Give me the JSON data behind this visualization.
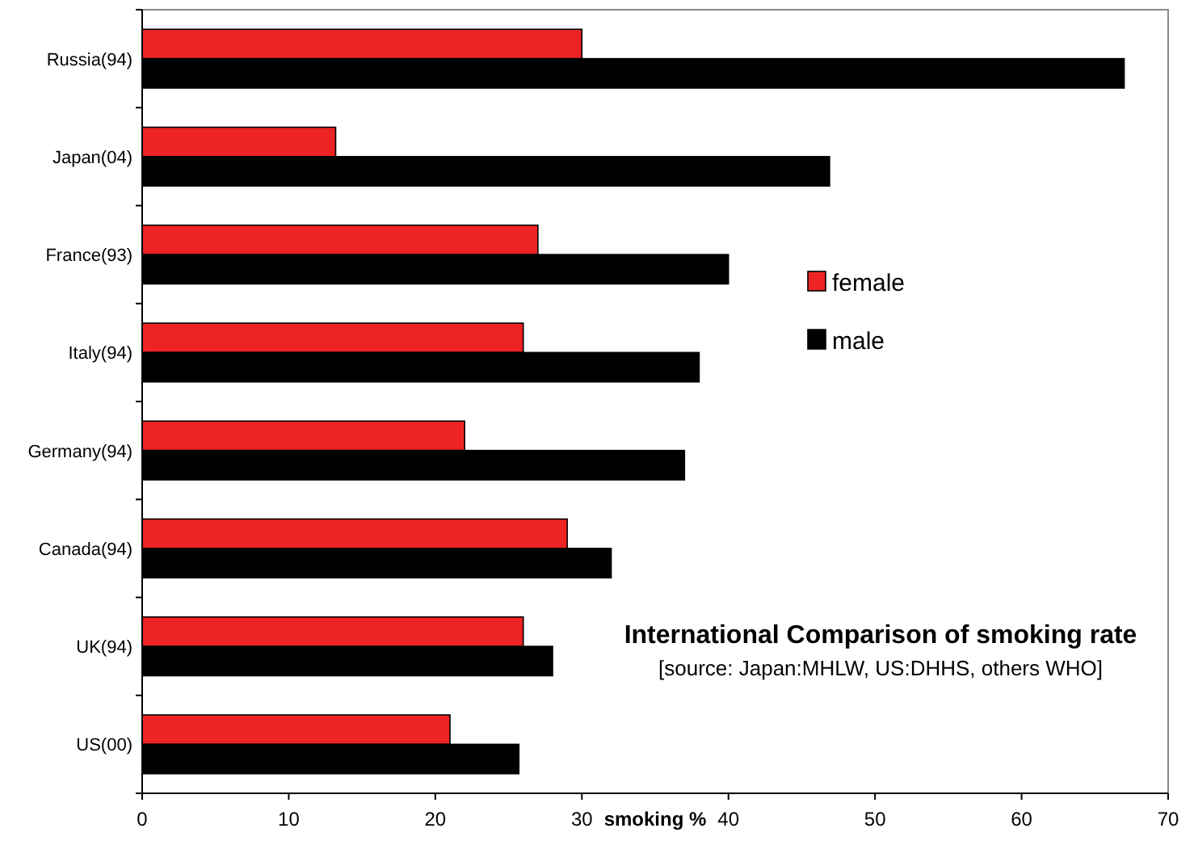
{
  "chart_data": {
    "type": "bar",
    "orientation": "horizontal",
    "title": "International Comparison of smoking rate",
    "subtitle": "[source: Japan:MHLW, US:DHHS, others WHO]",
    "xlabel": "smoking %",
    "categories": [
      "Russia(94)",
      "Japan(04)",
      "France(93)",
      "Italy(94)",
      "Germany(94)",
      "Canada(94)",
      "UK(94)",
      "US(00)"
    ],
    "series": [
      {
        "name": "female",
        "color": "#ee2424",
        "values": [
          30,
          13.2,
          27,
          26,
          22,
          29,
          26,
          21
        ]
      },
      {
        "name": "male",
        "color": "#000000",
        "values": [
          67,
          46.9,
          40,
          38,
          37,
          32,
          28,
          25.7
        ]
      }
    ],
    "xlim": [
      0,
      70
    ],
    "xticks": [
      0,
      10,
      20,
      30,
      40,
      50,
      60,
      70
    ],
    "grid": false,
    "legend": "right"
  }
}
